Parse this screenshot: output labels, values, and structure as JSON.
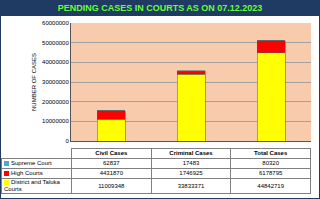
{
  "chart_data": {
    "type": "bar",
    "title": "PENDING CASES IN COURTS AS ON 07.12.2023",
    "y_label": "NUMBER OF CASES",
    "categories": [
      "Civil Cases",
      "Criminal Cases",
      "Total Cases"
    ],
    "series": [
      {
        "name": "Supreme Court",
        "color": "#4bacc6",
        "values": [
          62837,
          17483,
          80320
        ]
      },
      {
        "name": "High Courts",
        "color": "#ff0000",
        "values": [
          4431870,
          1746925,
          6178795
        ]
      },
      {
        "name": "District and Taluka Courts",
        "color": "#ffff00",
        "values": [
          11009348,
          33833371,
          44842719
        ]
      }
    ],
    "ylim": [
      0,
      60000000
    ],
    "yticks": [
      0,
      10000000,
      20000000,
      30000000,
      40000000,
      50000000,
      60000000
    ],
    "grid": true,
    "stacked": true,
    "tick_labels": "y"
  }
}
